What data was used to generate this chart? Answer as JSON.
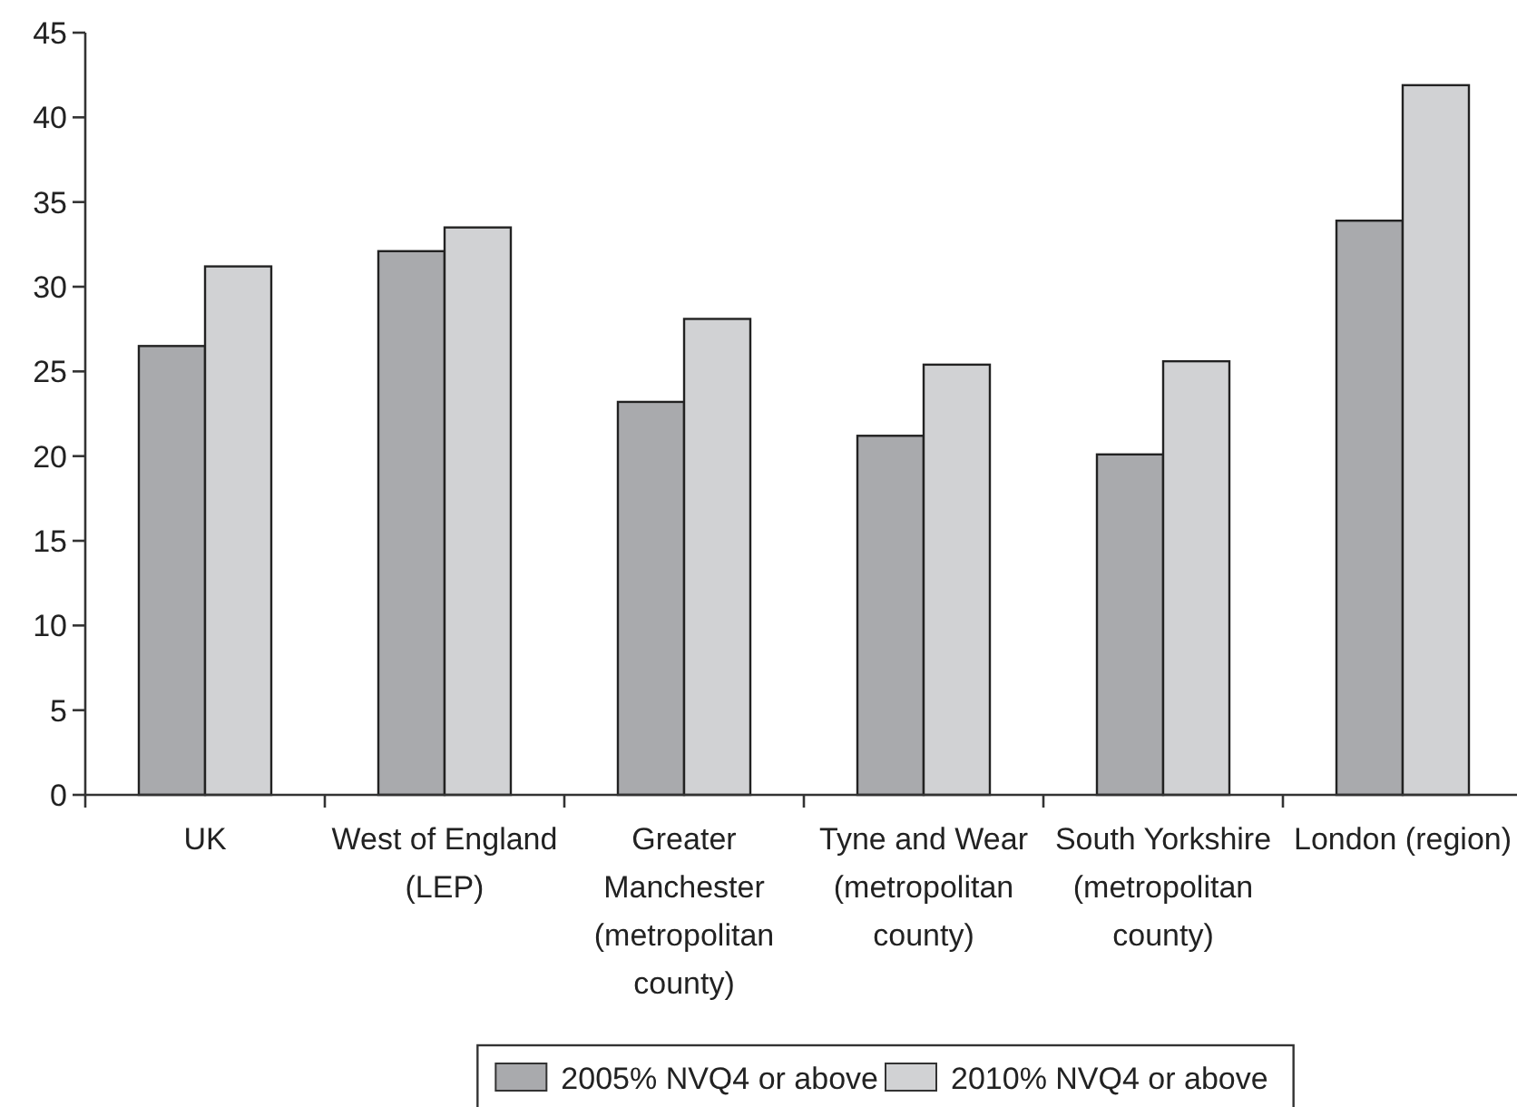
{
  "chart_data": {
    "type": "bar",
    "categories": [
      "UK",
      "West of England (LEP)",
      "Greater Manchester (metropolitan county)",
      "Tyne and Wear (metropolitan county)",
      "South Yorkshire (metropolitan county)",
      "London (region)"
    ],
    "series": [
      {
        "name": "2005% NVQ4 or above",
        "color": "#a9aaad",
        "values": [
          26.5,
          32.1,
          23.2,
          21.2,
          20.1,
          33.9
        ]
      },
      {
        "name": "2010% NVQ4 or above",
        "color": "#d1d2d4",
        "values": [
          31.2,
          33.5,
          28.1,
          25.4,
          25.6,
          41.9
        ]
      }
    ],
    "ylim": [
      0,
      45
    ],
    "yticks": [
      0,
      5,
      10,
      15,
      20,
      25,
      30,
      35,
      40,
      45
    ],
    "grid": false,
    "legend": "bottom"
  }
}
